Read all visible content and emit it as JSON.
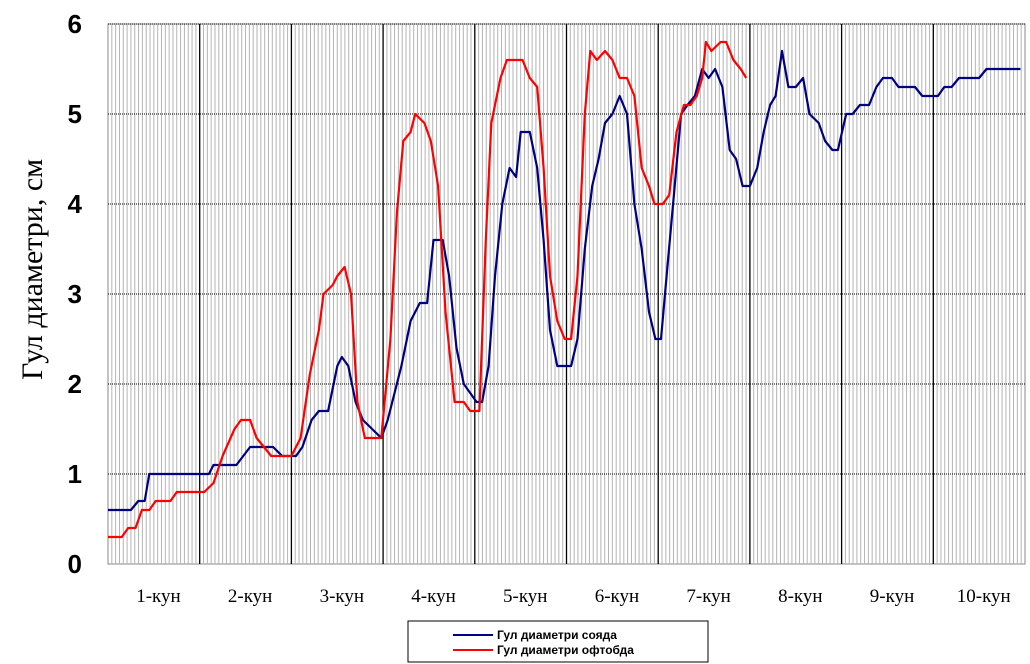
{
  "chart_data": {
    "type": "line",
    "title": "",
    "ylabel": "Гул диаметри, см",
    "xlabel": "",
    "ylim": [
      0,
      6
    ],
    "xlim": [
      0,
      10
    ],
    "yticks": [
      "0",
      "1",
      "2",
      "3",
      "4",
      "5",
      "6"
    ],
    "xtick_labels": [
      "1-кун",
      "2-кун",
      "3-кун",
      "4-кун",
      "5-кун",
      "6-кун",
      "7-кун",
      "8-кун",
      "9-кун",
      "10-кун"
    ],
    "grid": true,
    "legend_position": "bottom-center",
    "series": [
      {
        "name": "Гул диаметри соядa",
        "color": "#000080",
        "points": [
          [
            0.0,
            0.6
          ],
          [
            0.25,
            0.6
          ],
          [
            0.33,
            0.7
          ],
          [
            0.4,
            0.7
          ],
          [
            0.45,
            1.0
          ],
          [
            1.0,
            1.0
          ],
          [
            1.1,
            1.0
          ],
          [
            1.15,
            1.1
          ],
          [
            1.3,
            1.1
          ],
          [
            1.4,
            1.1
          ],
          [
            1.55,
            1.3
          ],
          [
            1.8,
            1.3
          ],
          [
            1.9,
            1.2
          ],
          [
            2.05,
            1.2
          ],
          [
            2.12,
            1.3
          ],
          [
            2.22,
            1.6
          ],
          [
            2.3,
            1.7
          ],
          [
            2.4,
            1.7
          ],
          [
            2.5,
            2.2
          ],
          [
            2.55,
            2.3
          ],
          [
            2.62,
            2.2
          ],
          [
            2.7,
            1.8
          ],
          [
            2.78,
            1.6
          ],
          [
            2.88,
            1.5
          ],
          [
            2.98,
            1.4
          ],
          [
            3.05,
            1.6
          ],
          [
            3.2,
            2.2
          ],
          [
            3.3,
            2.7
          ],
          [
            3.4,
            2.9
          ],
          [
            3.48,
            2.9
          ],
          [
            3.55,
            3.6
          ],
          [
            3.65,
            3.6
          ],
          [
            3.72,
            3.2
          ],
          [
            3.8,
            2.4
          ],
          [
            3.88,
            2.0
          ],
          [
            3.95,
            1.9
          ],
          [
            4.02,
            1.8
          ],
          [
            4.08,
            1.8
          ],
          [
            4.15,
            2.2
          ],
          [
            4.22,
            3.2
          ],
          [
            4.3,
            4.0
          ],
          [
            4.38,
            4.4
          ],
          [
            4.45,
            4.3
          ],
          [
            4.5,
            4.8
          ],
          [
            4.6,
            4.8
          ],
          [
            4.68,
            4.4
          ],
          [
            4.75,
            3.6
          ],
          [
            4.82,
            2.6
          ],
          [
            4.9,
            2.2
          ],
          [
            5.05,
            2.2
          ],
          [
            5.12,
            2.5
          ],
          [
            5.2,
            3.5
          ],
          [
            5.28,
            4.2
          ],
          [
            5.35,
            4.5
          ],
          [
            5.42,
            4.9
          ],
          [
            5.5,
            5.0
          ],
          [
            5.58,
            5.2
          ],
          [
            5.66,
            5.0
          ],
          [
            5.74,
            4.0
          ],
          [
            5.82,
            3.5
          ],
          [
            5.9,
            2.8
          ],
          [
            5.97,
            2.5
          ],
          [
            6.03,
            2.5
          ],
          [
            6.1,
            3.3
          ],
          [
            6.18,
            4.2
          ],
          [
            6.25,
            5.0
          ],
          [
            6.32,
            5.1
          ],
          [
            6.4,
            5.2
          ],
          [
            6.48,
            5.5
          ],
          [
            6.55,
            5.4
          ],
          [
            6.62,
            5.5
          ],
          [
            6.7,
            5.3
          ],
          [
            6.78,
            4.6
          ],
          [
            6.85,
            4.5
          ],
          [
            6.92,
            4.2
          ],
          [
            7.0,
            4.2
          ],
          [
            7.08,
            4.4
          ],
          [
            7.15,
            4.8
          ],
          [
            7.22,
            5.1
          ],
          [
            7.28,
            5.2
          ],
          [
            7.35,
            5.7
          ],
          [
            7.42,
            5.3
          ],
          [
            7.5,
            5.3
          ],
          [
            7.58,
            5.4
          ],
          [
            7.65,
            5.0
          ],
          [
            7.75,
            4.9
          ],
          [
            7.82,
            4.7
          ],
          [
            7.9,
            4.6
          ],
          [
            7.96,
            4.6
          ],
          [
            8.05,
            5.0
          ],
          [
            8.12,
            5.0
          ],
          [
            8.2,
            5.1
          ],
          [
            8.3,
            5.1
          ],
          [
            8.38,
            5.3
          ],
          [
            8.45,
            5.4
          ],
          [
            8.55,
            5.4
          ],
          [
            8.62,
            5.3
          ],
          [
            8.8,
            5.3
          ],
          [
            8.88,
            5.2
          ],
          [
            9.05,
            5.2
          ],
          [
            9.12,
            5.3
          ],
          [
            9.2,
            5.3
          ],
          [
            9.28,
            5.4
          ],
          [
            9.5,
            5.4
          ],
          [
            9.58,
            5.5
          ],
          [
            9.95,
            5.5
          ]
        ]
      },
      {
        "name": "Гул диаметри офтобда",
        "color": "#ff0000",
        "points": [
          [
            0.0,
            0.3
          ],
          [
            0.15,
            0.3
          ],
          [
            0.22,
            0.4
          ],
          [
            0.3,
            0.4
          ],
          [
            0.37,
            0.6
          ],
          [
            0.45,
            0.6
          ],
          [
            0.52,
            0.7
          ],
          [
            0.68,
            0.7
          ],
          [
            0.75,
            0.8
          ],
          [
            1.05,
            0.8
          ],
          [
            1.15,
            0.9
          ],
          [
            1.25,
            1.2
          ],
          [
            1.38,
            1.5
          ],
          [
            1.45,
            1.6
          ],
          [
            1.55,
            1.6
          ],
          [
            1.62,
            1.4
          ],
          [
            1.7,
            1.3
          ],
          [
            1.78,
            1.2
          ],
          [
            2.0,
            1.2
          ],
          [
            2.1,
            1.4
          ],
          [
            2.2,
            2.1
          ],
          [
            2.3,
            2.6
          ],
          [
            2.35,
            3.0
          ],
          [
            2.45,
            3.1
          ],
          [
            2.5,
            3.2
          ],
          [
            2.58,
            3.3
          ],
          [
            2.65,
            3.0
          ],
          [
            2.72,
            1.8
          ],
          [
            2.8,
            1.4
          ],
          [
            2.98,
            1.4
          ],
          [
            3.08,
            2.5
          ],
          [
            3.15,
            3.9
          ],
          [
            3.22,
            4.7
          ],
          [
            3.3,
            4.8
          ],
          [
            3.35,
            5.0
          ],
          [
            3.45,
            4.9
          ],
          [
            3.52,
            4.7
          ],
          [
            3.6,
            4.2
          ],
          [
            3.68,
            2.8
          ],
          [
            3.78,
            1.8
          ],
          [
            3.88,
            1.8
          ],
          [
            3.95,
            1.7
          ],
          [
            4.05,
            1.7
          ],
          [
            4.12,
            3.6
          ],
          [
            4.18,
            4.9
          ],
          [
            4.28,
            5.4
          ],
          [
            4.35,
            5.6
          ],
          [
            4.52,
            5.6
          ],
          [
            4.6,
            5.4
          ],
          [
            4.68,
            5.3
          ],
          [
            4.75,
            4.4
          ],
          [
            4.82,
            3.2
          ],
          [
            4.9,
            2.7
          ],
          [
            4.98,
            2.5
          ],
          [
            5.05,
            2.5
          ],
          [
            5.12,
            3.2
          ],
          [
            5.2,
            5.0
          ],
          [
            5.26,
            5.7
          ],
          [
            5.33,
            5.6
          ],
          [
            5.42,
            5.7
          ],
          [
            5.5,
            5.6
          ],
          [
            5.58,
            5.4
          ],
          [
            5.66,
            5.4
          ],
          [
            5.74,
            5.2
          ],
          [
            5.82,
            4.4
          ],
          [
            5.9,
            4.2
          ],
          [
            5.96,
            4.0
          ],
          [
            6.05,
            4.0
          ],
          [
            6.12,
            4.1
          ],
          [
            6.2,
            4.8
          ],
          [
            6.28,
            5.1
          ],
          [
            6.35,
            5.1
          ],
          [
            6.42,
            5.2
          ],
          [
            6.48,
            5.4
          ],
          [
            6.52,
            5.8
          ],
          [
            6.58,
            5.7
          ],
          [
            6.68,
            5.8
          ],
          [
            6.74,
            5.8
          ],
          [
            6.82,
            5.6
          ],
          [
            6.9,
            5.5
          ],
          [
            6.96,
            5.4
          ]
        ]
      }
    ]
  }
}
